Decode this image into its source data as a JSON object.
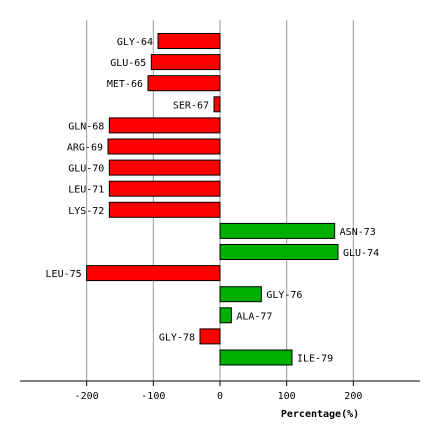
{
  "chart_data": {
    "type": "bar",
    "orientation": "horizontal",
    "categories": [
      "GLY-64",
      "GLU-65",
      "MET-66",
      "SER-67",
      "GLN-68",
      "ARG-69",
      "GLU-70",
      "LEU-71",
      "LYS-72",
      "ASN-73",
      "GLU-74",
      "LEU-75",
      "GLY-76",
      "ALA-77",
      "GLY-78",
      "ILE-79"
    ],
    "values": [
      -93,
      -103,
      -108,
      -9,
      -166,
      -168,
      -166,
      -166,
      -166,
      172,
      177,
      -200,
      62,
      17,
      -30,
      108
    ],
    "title": "",
    "xlabel": "Percentage(%)",
    "ylabel": "",
    "xlim": [
      -300,
      300
    ],
    "xticks": [
      -200,
      -100,
      0,
      100,
      200
    ],
    "grid": true,
    "colors": {
      "negative": "#ff0000",
      "positive": "#00b000",
      "grid": "#999999",
      "axis": "#000000",
      "bar_stroke": "#000000"
    }
  }
}
